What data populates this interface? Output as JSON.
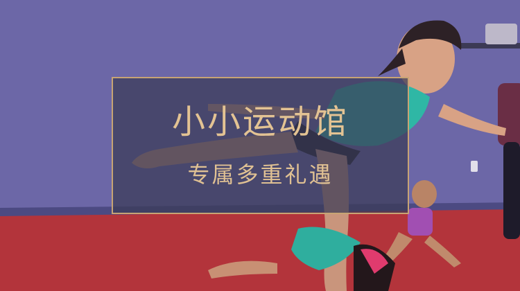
{
  "banner": {
    "title": "小小运动馆",
    "subtitle": "专属多重礼遇"
  },
  "colors": {
    "wall": "#6c66a6",
    "floor": "#b0323a",
    "frame": "#c8a474",
    "text": "#e3c393"
  }
}
